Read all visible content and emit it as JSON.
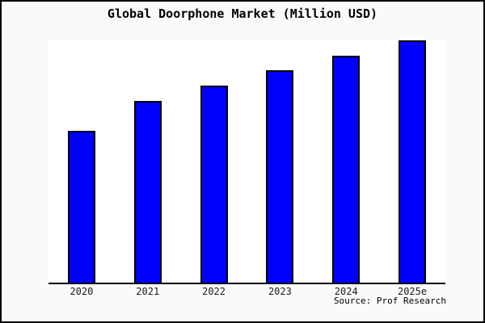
{
  "chart_data": {
    "type": "bar",
    "title": "Global Doorphone Market (Million USD)",
    "categories": [
      "2020",
      "2021",
      "2022",
      "2023",
      "2024",
      "2025e"
    ],
    "values": [
      62.7,
      75.0,
      81.3,
      87.7,
      93.7,
      100.0
    ],
    "values_are_percent_of_tallest_bar": true,
    "xlabel": "",
    "ylabel": "",
    "ylim": [
      0,
      100
    ],
    "y_axis_shown": false,
    "grid": false,
    "legend": false,
    "bar_color": "#0000ff",
    "bar_edge_color": "#000000",
    "figure_background": "#fafafa",
    "plot_background": "#ffffff",
    "source_label": "Source: Prof Research"
  }
}
